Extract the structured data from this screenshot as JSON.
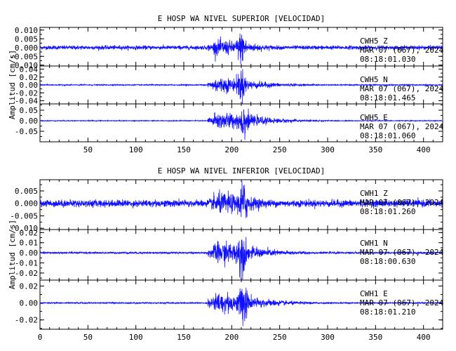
{
  "panels": [
    {
      "title": "E HOSP WA NIVEL SUPERIOR [VELOCIDAD]",
      "ylabel": "Amplitud [cm/s]",
      "xlim": [
        0,
        420
      ],
      "xticks": [
        50,
        100,
        150,
        200,
        250,
        300,
        350,
        400
      ],
      "show_x_tick_labels": true,
      "traces": [
        {
          "station": "CWH5",
          "component": "Z",
          "date": "MAR 07 (067), 2024",
          "time": "08:18:01.030",
          "ylim": [
            -0.0105,
            0.0115
          ],
          "yticks": [
            "0.010",
            "0.005",
            "0.000",
            "-0.005",
            "-0.010"
          ],
          "ytick_values": [
            0.01,
            0.005,
            0.0,
            -0.005,
            -0.01
          ]
        },
        {
          "station": "CWH5",
          "component": "N",
          "date": "MAR 07 (067), 2024",
          "time": "08:18:01.465",
          "ylim": [
            -0.048,
            0.048
          ],
          "yticks": [
            "0.04",
            "0.02",
            "0.00",
            "-0.02",
            "-0.04"
          ],
          "ytick_values": [
            0.04,
            0.02,
            0.0,
            -0.02,
            -0.04
          ]
        },
        {
          "station": "CWH5",
          "component": "E",
          "date": "MAR 07 (067), 2024",
          "time": "08:18:01.060",
          "ylim": [
            -0.1,
            0.08
          ],
          "yticks": [
            "0.05",
            "0.00",
            "-0.05"
          ],
          "ytick_values": [
            0.05,
            0.0,
            -0.05
          ]
        }
      ]
    },
    {
      "title": "E HOSP WA NIVEL INFERIOR [VELOCIDAD]",
      "ylabel": "Amplitud [cm/s]",
      "xlim": [
        0,
        420
      ],
      "xticks": [
        0,
        50,
        100,
        150,
        200,
        250,
        300,
        350,
        400
      ],
      "show_x_tick_labels": true,
      "traces": [
        {
          "station": "CWH1",
          "component": "Z",
          "date": "MAR 07 (067), 2024",
          "time": "08:18:01.260",
          "ylim": [
            -0.0105,
            0.0095
          ],
          "yticks": [
            "0.005",
            "0.000",
            "-0.005",
            "-0.010"
          ],
          "ytick_values": [
            0.005,
            0.0,
            -0.005,
            -0.01
          ]
        },
        {
          "station": "CWH1",
          "component": "N",
          "date": "MAR 07 (067), 2024",
          "time": "08:18:00.630",
          "ylim": [
            -0.027,
            0.023
          ],
          "yticks": [
            "0.02",
            "0.01",
            "0.00",
            "-0.01",
            "-0.02"
          ],
          "ytick_values": [
            0.02,
            0.01,
            0.0,
            -0.01,
            -0.02
          ]
        },
        {
          "station": "CWH1",
          "component": "E",
          "date": "MAR 07 (067), 2024",
          "time": "08:18:01.210",
          "ylim": [
            -0.031,
            0.027
          ],
          "yticks": [
            "0.02",
            "0.00",
            "-0.02"
          ],
          "ytick_values": [
            0.02,
            0.0,
            -0.02
          ]
        }
      ]
    }
  ],
  "chart_data": [
    {
      "type": "line",
      "title": "E HOSP WA NIVEL SUPERIOR [VELOCIDAD]",
      "xlabel": "",
      "ylabel": "Amplitud [cm/s]",
      "xlim": [
        0,
        420
      ],
      "grid": false,
      "series": [
        {
          "name": "CWH5 Z",
          "peak_abs": 0.01,
          "onset_x": 175,
          "peak_x": 210,
          "noise_abs": 0.0012
        },
        {
          "name": "CWH5 N",
          "peak_abs": 0.045,
          "onset_x": 175,
          "peak_x": 210,
          "noise_abs": 0.0015
        },
        {
          "name": "CWH5 E",
          "peak_abs": 0.095,
          "onset_x": 175,
          "peak_x": 212,
          "noise_abs": 0.002
        }
      ]
    },
    {
      "type": "line",
      "title": "E HOSP WA NIVEL INFERIOR [VELOCIDAD]",
      "xlabel": "",
      "ylabel": "Amplitud [cm/s]",
      "xlim": [
        0,
        420
      ],
      "grid": false,
      "series": [
        {
          "name": "CWH1 Z",
          "peak_abs": 0.01,
          "onset_x": 175,
          "peak_x": 212,
          "noise_abs": 0.0015
        },
        {
          "name": "CWH1 N",
          "peak_abs": 0.025,
          "onset_x": 175,
          "peak_x": 210,
          "noise_abs": 0.001
        },
        {
          "name": "CWH1 E",
          "peak_abs": 0.028,
          "onset_x": 175,
          "peak_x": 212,
          "noise_abs": 0.0008
        }
      ]
    }
  ]
}
